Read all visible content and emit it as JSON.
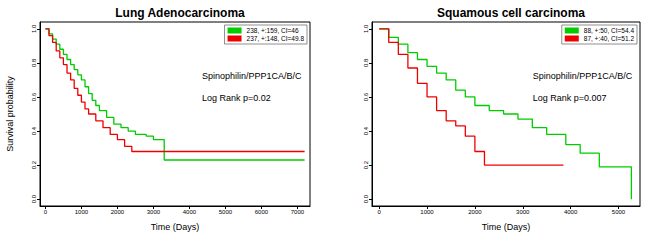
{
  "chart_data": [
    {
      "type": "step",
      "title": "Lung Adenocarcinoma",
      "x_label": "Time (Days)",
      "y_label": "Survival probability",
      "annotations": [
        "Spinophilin/PPP1CA/B/C",
        "Log Rank p=0.02"
      ],
      "xlim": [
        -150,
        7350
      ],
      "xticks": [
        0,
        1000,
        2000,
        3000,
        4000,
        5000,
        6000,
        7000
      ],
      "ylim": [
        -0.04,
        1.04
      ],
      "yticks": [
        {
          "value": 0,
          "label": "0.0"
        },
        0.2,
        0.4,
        0.6,
        0.8,
        {
          "value": 1,
          "label": "1.0"
        }
      ],
      "grid": false,
      "legend": "top-right",
      "series": [
        {
          "name": "238, +:159, CI=46",
          "color": "#00cc00",
          "x": [
            0,
            100,
            200,
            300,
            400,
            500,
            600,
            700,
            800,
            900,
            1000,
            1100,
            1200,
            1300,
            1400,
            1500,
            1700,
            1900,
            2100,
            2300,
            2500,
            2800,
            3000,
            3300,
            7200
          ],
          "values": [
            1,
            0.97,
            0.94,
            0.91,
            0.88,
            0.85,
            0.82,
            0.79,
            0.76,
            0.73,
            0.7,
            0.66,
            0.62,
            0.58,
            0.55,
            0.52,
            0.48,
            0.44,
            0.42,
            0.4,
            0.38,
            0.37,
            0.35,
            0.23,
            0.23
          ]
        },
        {
          "name": "237, +:148, CI=49.8",
          "color": "#ee0000",
          "x": [
            0,
            100,
            200,
            300,
            400,
            500,
            600,
            700,
            800,
            900,
            1000,
            1100,
            1200,
            1400,
            1600,
            1800,
            2000,
            2200,
            2400,
            7200
          ],
          "values": [
            1,
            0.96,
            0.92,
            0.87,
            0.83,
            0.79,
            0.74,
            0.7,
            0.65,
            0.61,
            0.57,
            0.53,
            0.5,
            0.46,
            0.42,
            0.38,
            0.35,
            0.31,
            0.28,
            0.28
          ]
        }
      ]
    },
    {
      "type": "step",
      "title": "Squamous cell carcinoma",
      "x_label": "Time (Days)",
      "annotations": [
        "Spinophilin/PPP1CA/B/C",
        "Log Rank p=0.007"
      ],
      "xlim": [
        -150,
        5450
      ],
      "xticks": [
        0,
        1000,
        2000,
        3000,
        4000,
        5000
      ],
      "ylim": [
        -0.04,
        1.04
      ],
      "yticks": [
        {
          "value": 0,
          "label": "0.0"
        },
        0.2,
        0.4,
        0.6,
        0.8,
        {
          "value": 1,
          "label": "1.0"
        }
      ],
      "grid": false,
      "legend": "top-right",
      "series": [
        {
          "name": "88, +:50, CI=54.4",
          "color": "#00cc00",
          "x": [
            0,
            200,
            400,
            600,
            800,
            1000,
            1200,
            1400,
            1600,
            1800,
            2000,
            2300,
            2600,
            2900,
            3200,
            3500,
            3900,
            4200,
            4600,
            5200,
            5270
          ],
          "values": [
            1,
            0.95,
            0.91,
            0.86,
            0.82,
            0.78,
            0.74,
            0.7,
            0.64,
            0.6,
            0.55,
            0.52,
            0.5,
            0.47,
            0.42,
            0.38,
            0.32,
            0.27,
            0.19,
            0.19,
            0
          ]
        },
        {
          "name": "87, +:40, CI=51.2",
          "color": "#ee0000",
          "x": [
            0,
            200,
            400,
            600,
            800,
            1000,
            1200,
            1400,
            1600,
            1800,
            2000,
            2200,
            3850
          ],
          "values": [
            1,
            0.92,
            0.85,
            0.77,
            0.68,
            0.6,
            0.52,
            0.46,
            0.43,
            0.37,
            0.28,
            0.2,
            0.2
          ]
        }
      ]
    }
  ]
}
